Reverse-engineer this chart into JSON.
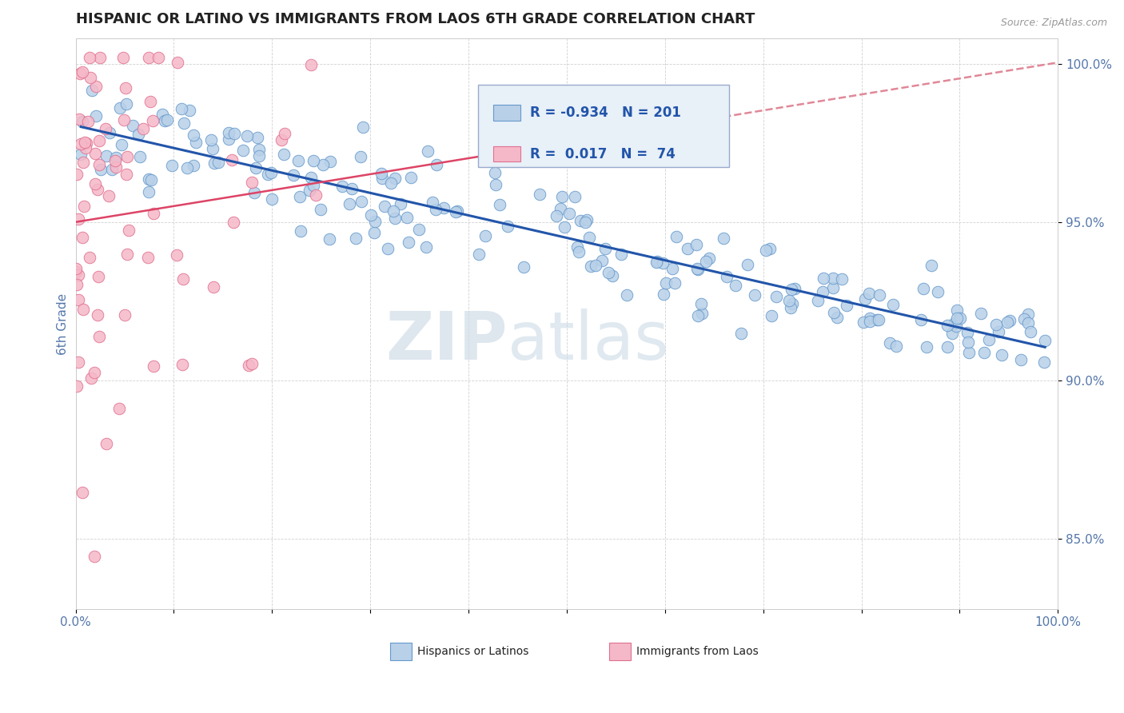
{
  "title": "HISPANIC OR LATINO VS IMMIGRANTS FROM LAOS 6TH GRADE CORRELATION CHART",
  "source": "Source: ZipAtlas.com",
  "ylabel": "6th Grade",
  "xlim": [
    0.0,
    1.0
  ],
  "ylim": [
    0.828,
    1.008
  ],
  "yticks": [
    0.85,
    0.9,
    0.95,
    1.0
  ],
  "ytick_labels": [
    "85.0%",
    "90.0%",
    "95.0%",
    "100.0%"
  ],
  "blue_R": -0.934,
  "blue_N": 201,
  "pink_R": 0.017,
  "pink_N": 74,
  "blue_color": "#b8d0e8",
  "blue_edge": "#6699cc",
  "pink_color": "#f5b8c8",
  "pink_edge": "#e07090",
  "blue_line_color": "#2255aa",
  "pink_line_solid_color": "#dd4466",
  "pink_line_dash_color": "#e08898",
  "watermark_zip": "ZIP",
  "watermark_atlas": "atlas",
  "title_color": "#222222",
  "axis_label_color": "#5577aa",
  "tick_label_color": "#5577aa",
  "background_color": "#ffffff",
  "grid_color": "#cccccc",
  "legend_bg": "#e8f0f8",
  "legend_edge": "#99aacc",
  "blue_seed": 42,
  "pink_seed": 99
}
